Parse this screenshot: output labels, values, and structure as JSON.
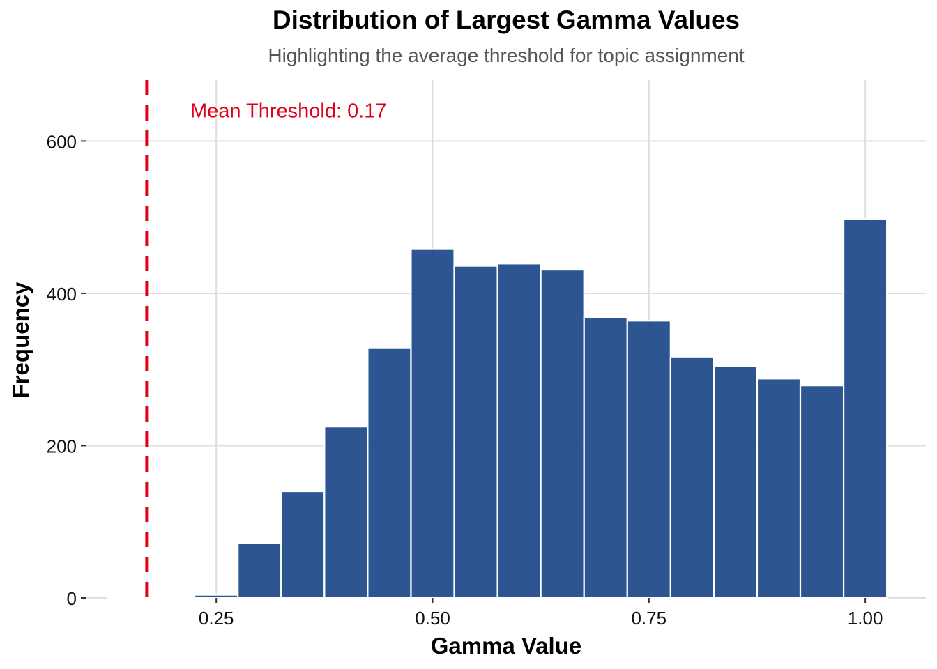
{
  "chart_data": {
    "type": "bar",
    "title": "Distribution of Largest Gamma Values",
    "subtitle": "Highlighting the average threshold for topic assignment",
    "xlabel": "Gamma Value",
    "ylabel": "Frequency",
    "xlim": [
      0.1,
      1.07
    ],
    "ylim": [
      0,
      680
    ],
    "x_ticks": [
      0.25,
      0.5,
      0.75,
      1.0
    ],
    "x_tick_labels": [
      "0.25",
      "0.50",
      "0.75",
      "1.00"
    ],
    "y_ticks": [
      0,
      200,
      400,
      600
    ],
    "y_tick_labels": [
      "0",
      "200",
      "400",
      "600"
    ],
    "grid": true,
    "bin_width": 0.05,
    "bars": [
      {
        "x": 0.15,
        "value": 0
      },
      {
        "x": 0.2,
        "value": 0
      },
      {
        "x": 0.25,
        "value": 4
      },
      {
        "x": 0.3,
        "value": 72
      },
      {
        "x": 0.35,
        "value": 140
      },
      {
        "x": 0.4,
        "value": 225
      },
      {
        "x": 0.45,
        "value": 328
      },
      {
        "x": 0.5,
        "value": 458
      },
      {
        "x": 0.55,
        "value": 436
      },
      {
        "x": 0.6,
        "value": 439
      },
      {
        "x": 0.65,
        "value": 431
      },
      {
        "x": 0.7,
        "value": 368
      },
      {
        "x": 0.75,
        "value": 364
      },
      {
        "x": 0.8,
        "value": 316
      },
      {
        "x": 0.85,
        "value": 304
      },
      {
        "x": 0.9,
        "value": 288
      },
      {
        "x": 0.95,
        "value": 279
      },
      {
        "x": 1.0,
        "value": 498
      }
    ],
    "bar_color": "#1f4a8a",
    "threshold": {
      "value": 0.17,
      "label": "Mean Threshold: 0.17",
      "color": "#e0001b",
      "label_y": 640
    }
  }
}
